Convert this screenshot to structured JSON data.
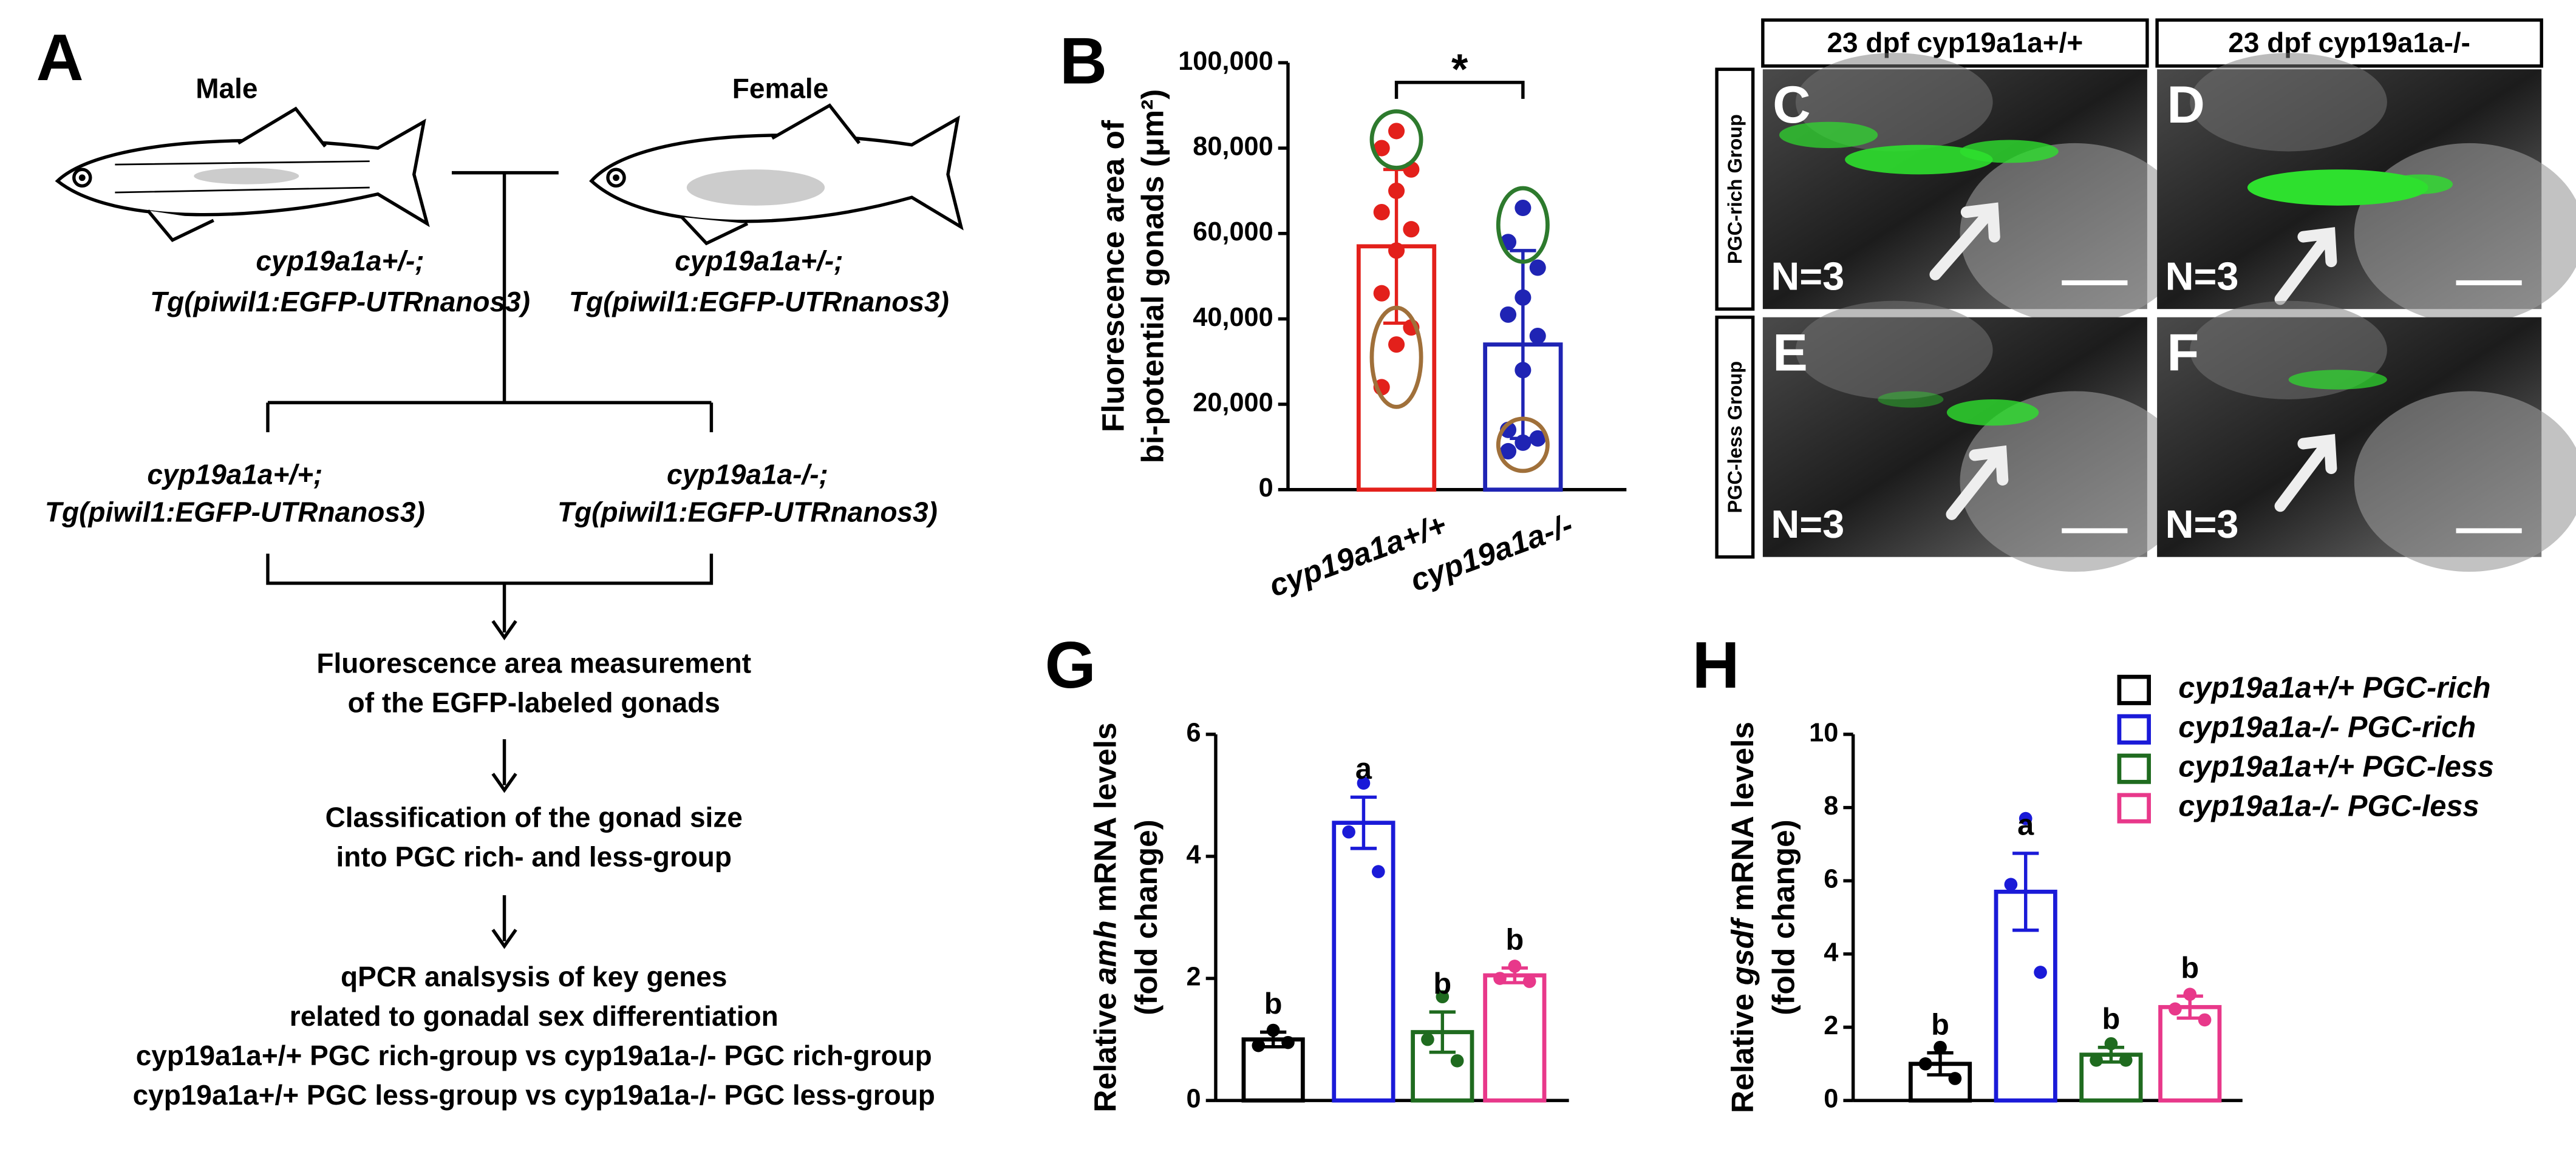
{
  "flowchart": {
    "label": "A",
    "parents": [
      {
        "sex": "Male",
        "genotype": [
          "cyp19a1a+/-;",
          "Tg(piwil1:EGFP-UTRnanos3)"
        ]
      },
      {
        "sex": "Female",
        "genotype": [
          "cyp19a1a+/-;",
          "Tg(piwil1:EGFP-UTRnanos3)"
        ]
      }
    ],
    "offspring": [
      {
        "genotype": [
          "cyp19a1a+/+;",
          "Tg(piwil1:EGFP-UTRnanos3)"
        ]
      },
      {
        "genotype": [
          "cyp19a1a-/-;",
          "Tg(piwil1:EGFP-UTRnanos3)"
        ]
      }
    ],
    "steps": [
      [
        "Fluorescence area measurement",
        "of the EGFP-labeled gonads"
      ],
      [
        "Classification of the gonad size",
        "into PGC rich- and less-group"
      ],
      [
        "qPCR analsysis of key genes",
        "related to gonadal sex differentiation",
        "cyp19a1a+/+ PGC rich-group vs cyp19a1a-/- PGC rich-group",
        "cyp19a1a+/+ PGC less-group vs cyp19a1a-/- PGC less-group"
      ]
    ]
  },
  "images": {
    "columns": [
      "23 dpf  cyp19a1a+/+",
      "23 dpf  cyp19a1a-/-"
    ],
    "rows": [
      "PGC-rich Group",
      "PGC-less Group"
    ],
    "panels": [
      {
        "label": "C",
        "n": "N=3"
      },
      {
        "label": "D",
        "n": "N=3"
      },
      {
        "label": "E",
        "n": "N=3"
      },
      {
        "label": "F",
        "n": "N=3"
      }
    ]
  },
  "chart_data": [
    {
      "type": "bar",
      "label": "B",
      "ylabel": [
        "Fluorescence area of",
        "bi-potential gonads (μm²)"
      ],
      "categories": [
        "cyp19a1a+/+",
        "cyp19a1a-/-"
      ],
      "values": [
        57000,
        34000
      ],
      "errors": [
        18000,
        22000
      ],
      "colors": [
        "#e3201b",
        "#1f24b4"
      ],
      "points": [
        [
          84000,
          80000,
          75000,
          70000,
          65000,
          61000,
          56000,
          46000,
          38000,
          34000,
          24000
        ],
        [
          66000,
          58000,
          52000,
          45000,
          41000,
          36000,
          28000,
          14000,
          12000,
          11000,
          9000
        ]
      ],
      "significance": "*",
      "ylim": [
        0,
        100000
      ],
      "yticks": [
        0,
        {
          "value": 20000,
          "label": "20,000"
        },
        {
          "value": 40000,
          "label": "40,000"
        },
        {
          "value": 60000,
          "label": "60,000"
        },
        {
          "value": 80000,
          "label": "80,000"
        },
        {
          "value": 100000,
          "label": "100,000"
        }
      ]
    },
    {
      "type": "bar",
      "label": "G",
      "ylabel": [
        [
          "Relative",
          "amh",
          "mRNA levels"
        ],
        [
          "(fold change)"
        ]
      ],
      "values": [
        1.0,
        4.55,
        1.12,
        2.05
      ],
      "errors": [
        0.12,
        0.42,
        0.33,
        0.12
      ],
      "colors": [
        "#000000",
        "#1a1ad8",
        "#1f6b1f",
        "#e8388a"
      ],
      "points": [
        [
          1.15,
          0.9,
          0.95
        ],
        [
          5.2,
          4.4,
          3.75
        ],
        [
          1.7,
          1.0,
          0.65
        ],
        [
          2.2,
          2.0,
          1.95
        ]
      ],
      "letters": [
        "b",
        "a",
        "b",
        "b"
      ],
      "ylim": [
        0,
        6
      ],
      "yticks": [
        0,
        2,
        4,
        6
      ]
    },
    {
      "type": "bar",
      "label": "H",
      "ylabel": [
        [
          "Relative",
          "gsdf",
          "mRNA levels"
        ],
        [
          "(fold change)"
        ]
      ],
      "categories": [
        "cyp19a1a+/+ PGC-rich",
        "cyp19a1a-/- PGC-rich",
        "cyp19a1a+/+ PGC-less",
        "cyp19a1a-/- PGC-less"
      ],
      "legend": "right",
      "values": [
        1.0,
        5.7,
        1.25,
        2.55
      ],
      "errors": [
        0.3,
        1.05,
        0.2,
        0.3
      ],
      "colors": [
        "#000000",
        "#1a1ad8",
        "#1f6b1f",
        "#e8388a"
      ],
      "points": [
        [
          1.45,
          1.0,
          0.6
        ],
        [
          7.7,
          5.9,
          3.5
        ],
        [
          1.55,
          1.1,
          1.1
        ],
        [
          2.9,
          2.5,
          2.2
        ]
      ],
      "letters": [
        "b",
        "a",
        "b",
        "b"
      ],
      "ylim": [
        0,
        10
      ],
      "yticks": [
        0,
        2,
        4,
        6,
        8,
        10
      ]
    }
  ]
}
